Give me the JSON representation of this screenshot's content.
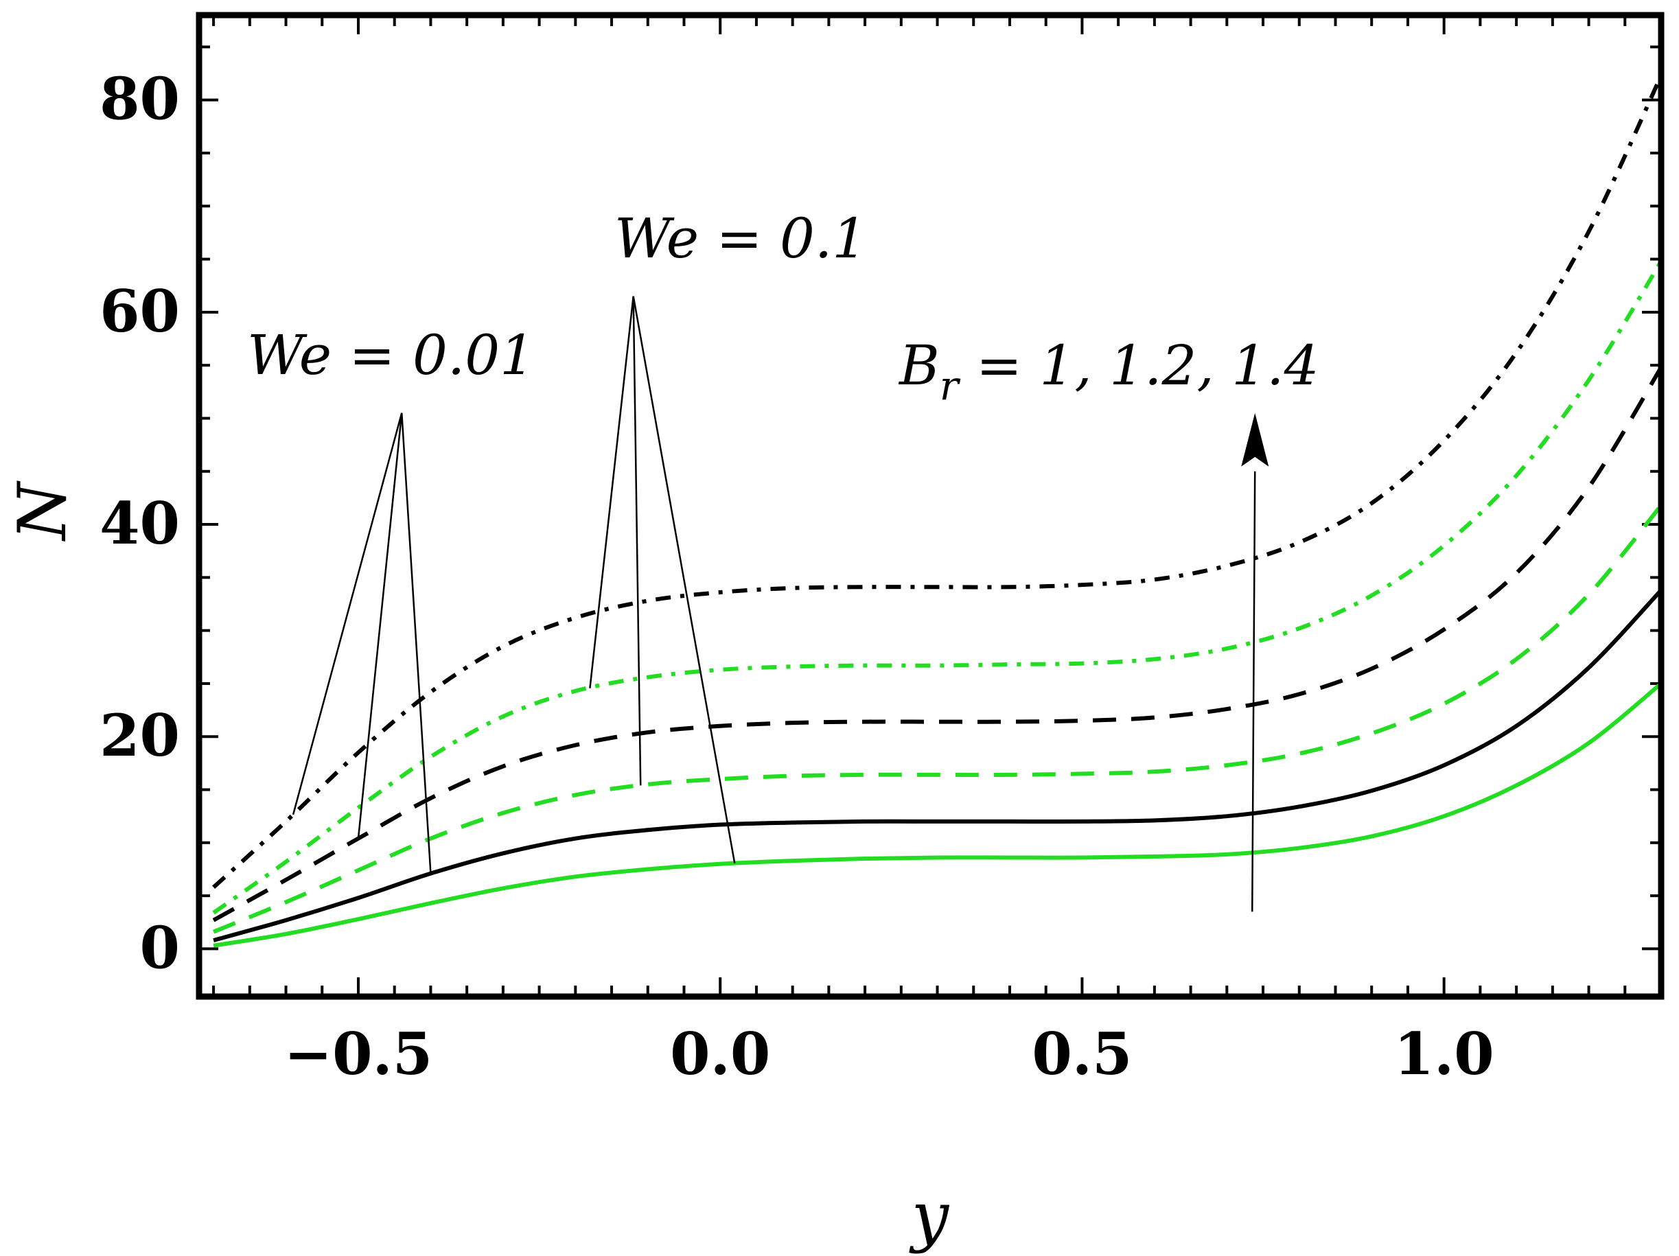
{
  "chart_data": {
    "type": "line",
    "title": "",
    "xlabel": "y",
    "ylabel": "N",
    "xlim": [
      -0.72,
      1.3
    ],
    "ylim": [
      -4.5,
      88
    ],
    "xticks": [
      -0.5,
      0.0,
      0.5,
      1.0
    ],
    "xtick_labels": [
      "−0.5",
      "0.0",
      "0.5",
      "1.0"
    ],
    "yticks": [
      0,
      20,
      40,
      60,
      80
    ],
    "ytick_labels": [
      "0",
      "20",
      "40",
      "60",
      "80"
    ],
    "grid": false,
    "x": [
      -0.7,
      -0.6,
      -0.5,
      -0.4,
      -0.3,
      -0.2,
      -0.1,
      0.0,
      0.1,
      0.2,
      0.3,
      0.4,
      0.5,
      0.6,
      0.7,
      0.8,
      0.9,
      1.0,
      1.1,
      1.2,
      1.3
    ],
    "series": [
      {
        "name": "We = 0.01, Br = 1",
        "color": "#000000",
        "dash": "solid",
        "values": [
          0.8,
          2.7,
          4.8,
          7.1,
          9.0,
          10.4,
          11.2,
          11.7,
          11.9,
          12.0,
          12.0,
          12.0,
          12.0,
          12.1,
          12.5,
          13.4,
          14.9,
          17.3,
          21.0,
          26.5,
          33.8
        ]
      },
      {
        "name": "We = 0.01, Br = 1.2",
        "color": "#000000",
        "dash": "dashed",
        "values": [
          2.7,
          6.5,
          10.4,
          14.2,
          17.2,
          19.2,
          20.4,
          21.0,
          21.3,
          21.4,
          21.4,
          21.4,
          21.5,
          21.8,
          22.6,
          24.0,
          26.4,
          30.1,
          35.4,
          43.5,
          54.8
        ]
      },
      {
        "name": "We = 0.01, Br = 1.4",
        "color": "#000000",
        "dash": "dashdot",
        "values": [
          5.8,
          12.0,
          18.5,
          24.2,
          28.5,
          31.2,
          32.8,
          33.6,
          34.0,
          34.1,
          34.1,
          34.1,
          34.3,
          34.8,
          36.1,
          38.3,
          42.0,
          47.9,
          56.2,
          67.6,
          82.3
        ]
      },
      {
        "name": "We = 0.1, Br = 1",
        "color": "#22dd22",
        "dash": "solid",
        "values": [
          0.3,
          1.4,
          2.8,
          4.3,
          5.7,
          6.8,
          7.5,
          8.0,
          8.3,
          8.5,
          8.6,
          8.6,
          8.6,
          8.7,
          8.9,
          9.5,
          10.6,
          12.5,
          15.4,
          19.4,
          25.0
        ]
      },
      {
        "name": "We = 0.1, Br = 1.2",
        "color": "#22dd22",
        "dash": "dashed",
        "values": [
          1.6,
          4.4,
          7.4,
          10.4,
          12.8,
          14.5,
          15.5,
          16.0,
          16.3,
          16.4,
          16.4,
          16.4,
          16.5,
          16.7,
          17.3,
          18.4,
          20.3,
          23.1,
          27.3,
          33.4,
          41.8
        ]
      },
      {
        "name": "We = 0.1, Br = 1.4",
        "color": "#22dd22",
        "dash": "dashdot",
        "values": [
          3.4,
          8.2,
          13.3,
          18.1,
          21.9,
          24.3,
          25.6,
          26.3,
          26.6,
          26.7,
          26.7,
          26.8,
          26.9,
          27.3,
          28.3,
          30.2,
          33.3,
          38.0,
          44.6,
          53.6,
          64.8
        ]
      }
    ],
    "annotations": {
      "we_low": "We = 0.01",
      "we_high": "We = 0.1",
      "br": "Br = 1, 1.2, 1.4",
      "br_sub": "r"
    }
  }
}
